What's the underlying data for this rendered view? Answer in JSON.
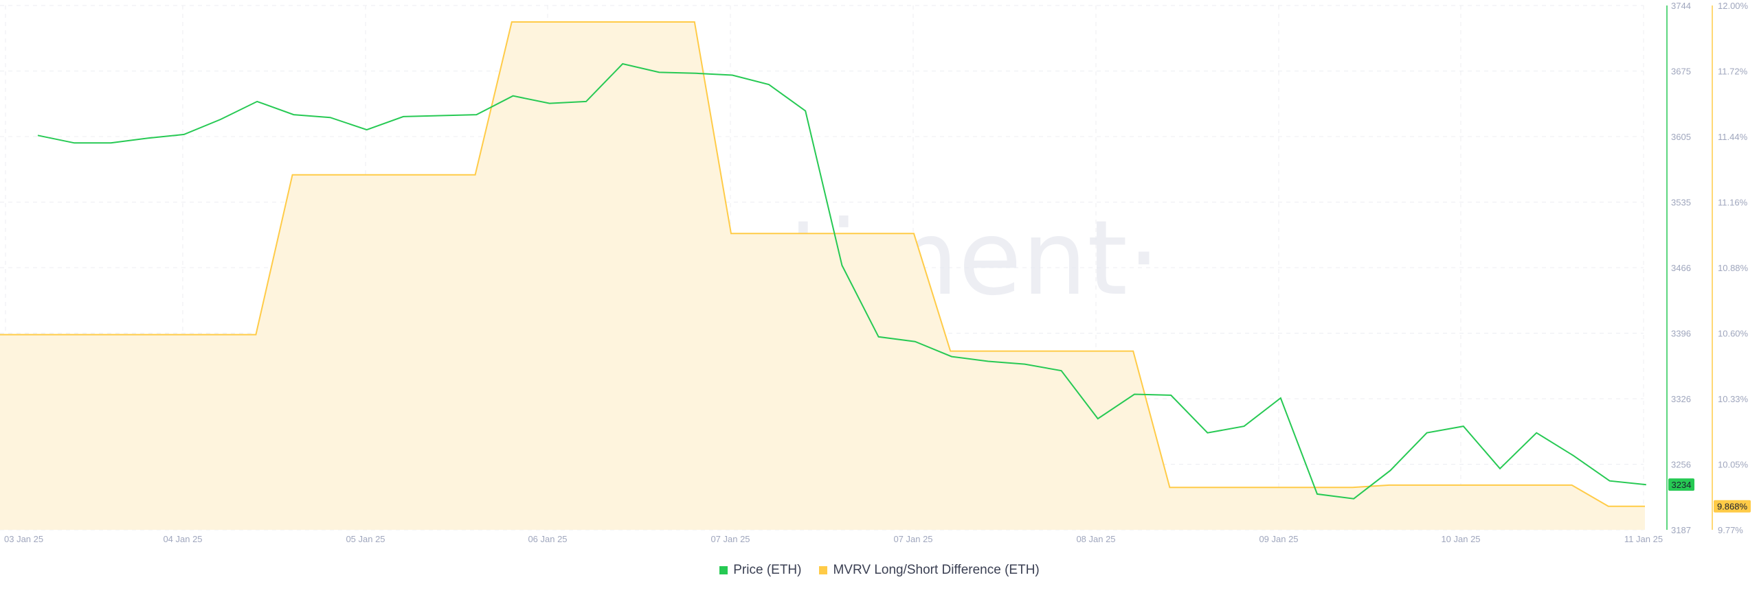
{
  "chart_data": {
    "type": "line",
    "watermark": "·santiment·",
    "x_ticks": [
      "03 Jan 25",
      "04 Jan 25",
      "05 Jan 25",
      "06 Jan 25",
      "07 Jan 25",
      "07 Jan 25",
      "08 Jan 25",
      "09 Jan 25",
      "10 Jan 25",
      "11 Jan 25"
    ],
    "price_axis": {
      "ticks": [
        "3744",
        "3675",
        "3605",
        "3535",
        "3466",
        "3396",
        "3326",
        "3256",
        "3187"
      ],
      "ylim": [
        3187,
        3744
      ],
      "color": "#26c953"
    },
    "mvrv_axis": {
      "ticks": [
        "12.00%",
        "11.72%",
        "11.44%",
        "11.16%",
        "10.88%",
        "10.60%",
        "10.33%",
        "10.05%",
        "9.77%"
      ],
      "ylim": [
        9.77,
        12.0
      ],
      "color": "#ffcb47"
    },
    "series": [
      {
        "name": "Price (ETH)",
        "color": "#26c953",
        "current_label": "3234",
        "values": [
          3606,
          3598,
          3598,
          3603,
          3607,
          3623,
          3642,
          3628,
          3625,
          3612,
          3626,
          3627,
          3628,
          3648,
          3640,
          3642,
          3682,
          3673,
          3672,
          3670,
          3660,
          3632,
          3468,
          3392,
          3387,
          3371,
          3366,
          3363,
          3356,
          3305,
          3331,
          3330,
          3290,
          3297,
          3327,
          3225,
          3220,
          3250,
          3290,
          3297,
          3252,
          3290,
          3266,
          3239,
          3235
        ]
      },
      {
        "name": "MVRV Long/Short Difference (ETH)",
        "color": "#ffcb47",
        "fill": "#fef4dd",
        "current_label": "9.868%",
        "points": [
          [
            0.0,
            10.6
          ],
          [
            7.0,
            10.6
          ],
          [
            8.0,
            11.28
          ],
          [
            13.0,
            11.28
          ],
          [
            14.0,
            11.93
          ],
          [
            19.0,
            11.93
          ],
          [
            20.0,
            11.03
          ],
          [
            25.0,
            11.03
          ],
          [
            26.0,
            10.53
          ],
          [
            31.0,
            10.53
          ],
          [
            32.0,
            9.95
          ],
          [
            37.0,
            9.95
          ],
          [
            38.0,
            9.96
          ],
          [
            43.0,
            9.96
          ],
          [
            44.0,
            9.87
          ],
          [
            45.0,
            9.87
          ]
        ]
      }
    ]
  }
}
